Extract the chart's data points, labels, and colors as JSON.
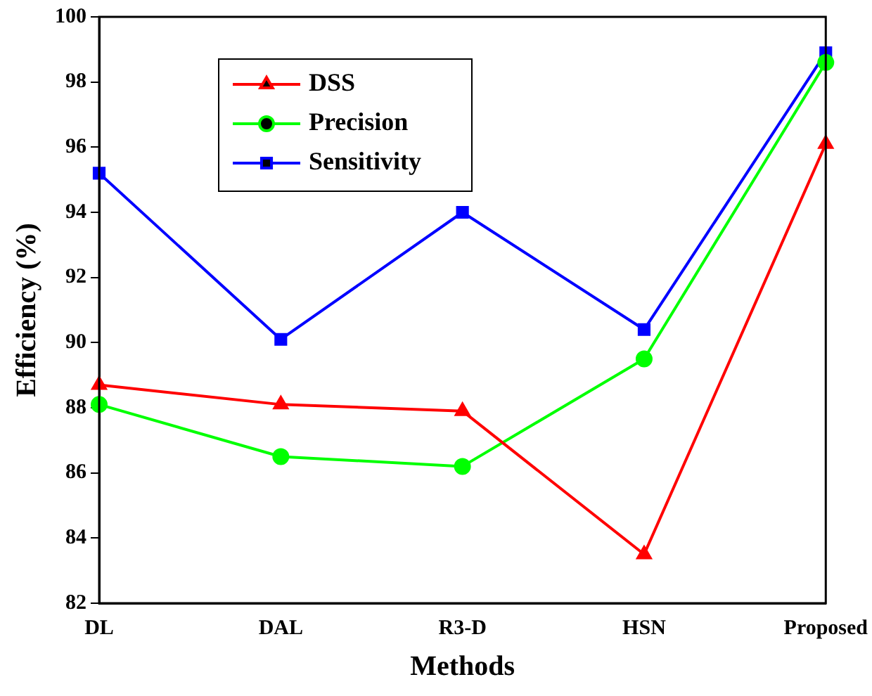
{
  "chart_data": {
    "type": "line",
    "xlabel": "Methods",
    "ylabel": "Efficiency (%)",
    "categories": [
      "DL",
      "DAL",
      "R3-D",
      "HSN",
      "Proposed"
    ],
    "series": [
      {
        "name": "DSS",
        "color": "#ff0000",
        "marker": "triangle",
        "values": [
          88.7,
          88.1,
          87.9,
          83.5,
          96.1
        ]
      },
      {
        "name": "Precision",
        "color": "#00ff00",
        "marker": "circle",
        "values": [
          88.1,
          86.5,
          86.2,
          89.5,
          98.6
        ]
      },
      {
        "name": "Sensitivity",
        "color": "#0000ff",
        "marker": "square",
        "values": [
          95.2,
          90.1,
          94.0,
          90.4,
          98.9
        ]
      }
    ],
    "ylim": [
      82,
      100
    ],
    "yticks": [
      82,
      84,
      86,
      88,
      90,
      92,
      94,
      96,
      98,
      100
    ],
    "grid": false,
    "legend": "top left",
    "line_style": "solid"
  }
}
